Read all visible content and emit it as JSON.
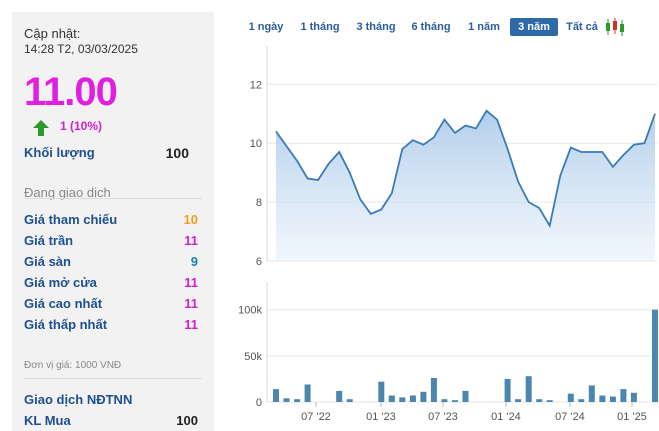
{
  "info": {
    "updated_label": "Cập nhật:",
    "updated_time": "14:28 T2, 03/03/2025",
    "price": "11.00",
    "change": "1 (10%)",
    "volume_label": "Khối lượng",
    "volume_value": "100",
    "trading_status": "Đang giao dịch",
    "unit_note": "Đơn vị giá: 1000 VNĐ",
    "foreign_label": "Giao dịch NĐTNN",
    "foreign_buy_label": "KL Mua",
    "foreign_buy_value": "100"
  },
  "price_rows": [
    {
      "label": "Giá tham chiếu",
      "value": "10",
      "color": "#f0a020"
    },
    {
      "label": "Giá trần",
      "value": "11",
      "color": "#d020d0"
    },
    {
      "label": "Giá sàn",
      "value": "9",
      "color": "#1a7fb0"
    },
    {
      "label": "Giá mở cửa",
      "value": "11",
      "color": "#d020d0"
    },
    {
      "label": "Giá cao nhất",
      "value": "11",
      "color": "#d020d0"
    },
    {
      "label": "Giá thấp nhất",
      "value": "11",
      "color": "#d020d0"
    }
  ],
  "colors": {
    "up_arrow": "#2a9a2a",
    "line": "#3a7ab8",
    "volume_bar": "#4a86ad"
  },
  "range_buttons": [
    {
      "label": "1 ngày",
      "active": false
    },
    {
      "label": "1 tháng",
      "active": false
    },
    {
      "label": "3 tháng",
      "active": false
    },
    {
      "label": "6 tháng",
      "active": false
    },
    {
      "label": "1 năm",
      "active": false
    },
    {
      "label": "3 năm",
      "active": true
    },
    {
      "label": "Tất cả",
      "active": false
    }
  ],
  "chart_data": [
    {
      "type": "area",
      "y_ticks": [
        "12",
        "10",
        "8",
        "6"
      ],
      "ylim": [
        6,
        13.3
      ],
      "x_ticks": [
        "07 '22",
        "01 '23",
        "07 '23",
        "01 '24",
        "07 '24",
        "01 '25"
      ],
      "values": [
        10.4,
        9.9,
        9.4,
        8.8,
        8.75,
        9.3,
        9.7,
        9.0,
        8.1,
        7.6,
        7.75,
        8.3,
        9.8,
        10.1,
        9.95,
        10.2,
        10.8,
        10.35,
        10.6,
        10.5,
        11.1,
        10.8,
        9.8,
        8.7,
        8.0,
        7.8,
        7.2,
        8.9,
        9.85,
        9.7,
        9.7,
        9.7,
        9.2,
        9.6,
        9.95,
        10.0,
        11.0
      ]
    },
    {
      "type": "bar",
      "y_ticks": [
        "100k",
        "50k",
        "0"
      ],
      "ylim": [
        0,
        130000
      ],
      "values": [
        14000,
        4000,
        3000,
        19000,
        0,
        0,
        12000,
        3000,
        0,
        0,
        22000,
        7000,
        5000,
        7000,
        11000,
        26000,
        3000,
        2000,
        12000,
        0,
        0,
        0,
        25000,
        3000,
        28000,
        3000,
        2000,
        0,
        9000,
        3000,
        18000,
        7000,
        6000,
        14000,
        10000,
        0,
        100000
      ]
    }
  ]
}
